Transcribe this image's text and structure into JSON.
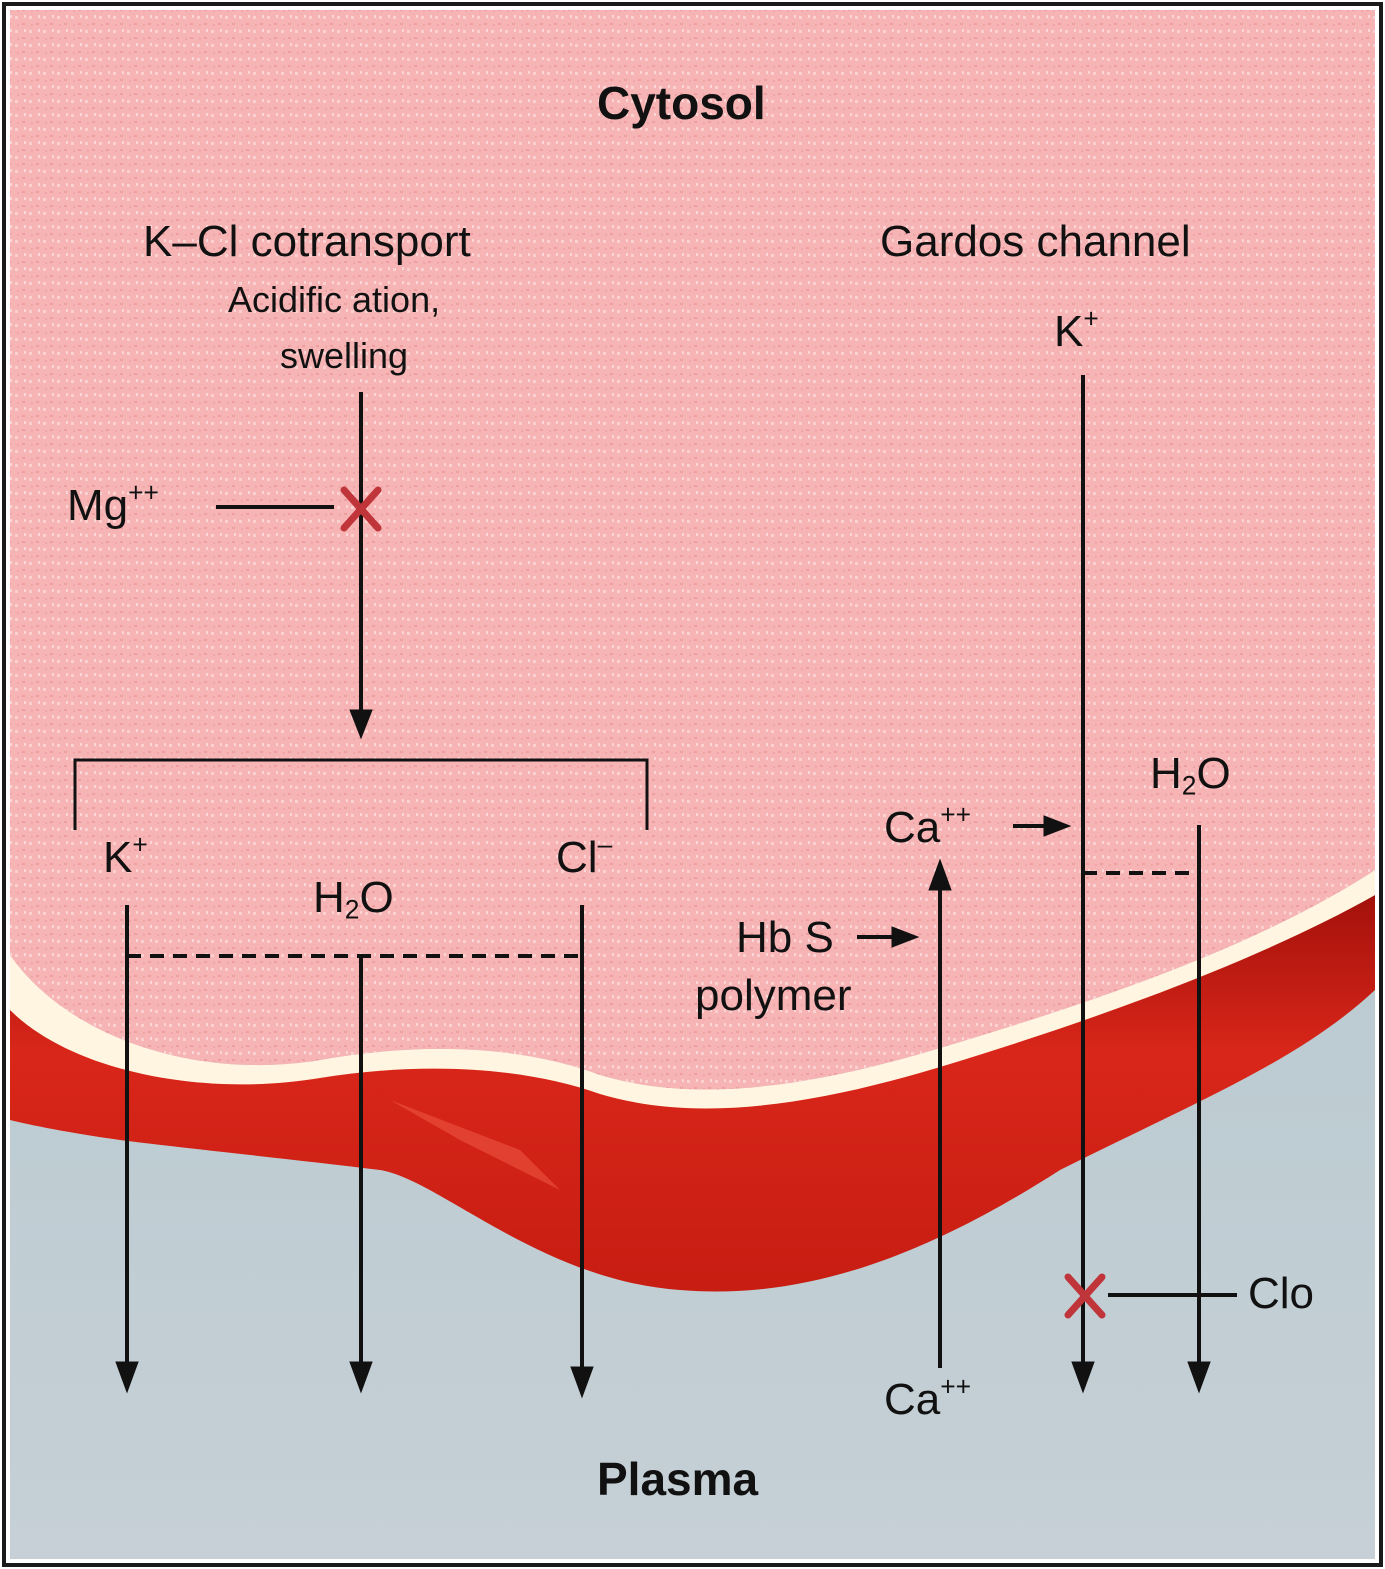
{
  "regions": {
    "top": "Cytosol",
    "bottom": "Plasma"
  },
  "kcl": {
    "title": "K–Cl cotransport",
    "stimulus_line1": "Acidific ation,",
    "stimulus_line2": "swelling",
    "inhibitor": "Mg",
    "inhibitor_charge": "++",
    "k_ion": "K",
    "k_charge": "+",
    "water_h": "H",
    "water_sub": "2",
    "water_o": "O",
    "cl_ion": "Cl",
    "cl_charge": "–"
  },
  "gardos": {
    "title": "Gardos channel",
    "k_ion": "K",
    "k_charge": "+",
    "water_h": "H",
    "water_sub": "2",
    "water_o": "O",
    "ca_in": "Ca",
    "ca_in_charge": "++",
    "ca_out": "Ca",
    "ca_out_charge": "++",
    "hbs_line1": "Hb S",
    "hbs_line2": "polymer",
    "inhibitor": "Clo"
  },
  "colors": {
    "cytosol": "#f7b4b5",
    "membrane_white": "#fff5e0",
    "membrane_red": "#d41e12",
    "plasma": "#b7cbd1",
    "block_x": "#c0353a"
  }
}
